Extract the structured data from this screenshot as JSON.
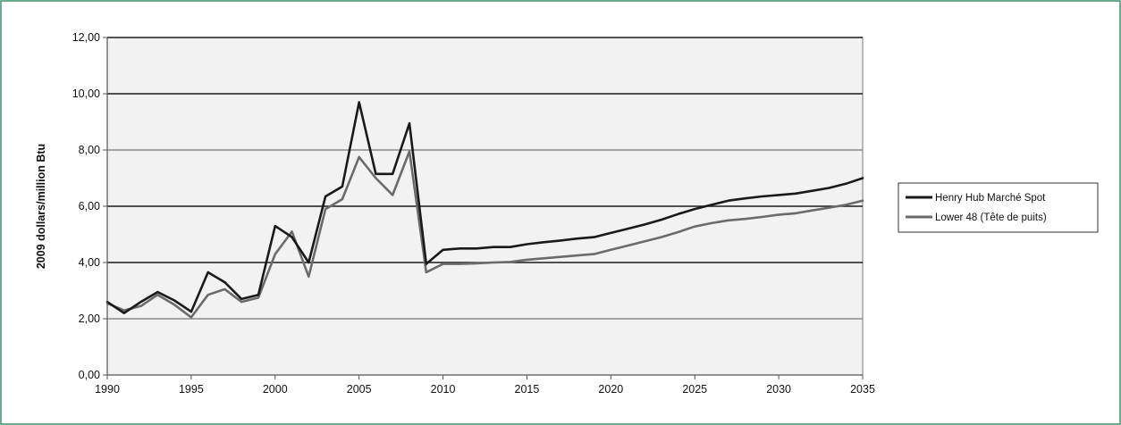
{
  "chart_data": {
    "type": "line",
    "title": "",
    "xlabel": "",
    "ylabel": "2009 dollars/million Btu",
    "xlim": [
      1990,
      2035
    ],
    "ylim": [
      0,
      12
    ],
    "x_ticks": [
      "1990",
      "1995",
      "2000",
      "2005",
      "2010",
      "2015",
      "2020",
      "2025",
      "2030",
      "2035"
    ],
    "y_ticks": [
      "0,00",
      "2,00",
      "4,00",
      "6,00",
      "8,00",
      "10,00",
      "12,00"
    ],
    "grid": true,
    "legend_position": "right",
    "x": [
      1990,
      1991,
      1992,
      1993,
      1994,
      1995,
      1996,
      1997,
      1998,
      1999,
      2000,
      2001,
      2002,
      2003,
      2004,
      2005,
      2006,
      2007,
      2008,
      2009,
      2010,
      2011,
      2012,
      2013,
      2014,
      2015,
      2016,
      2017,
      2018,
      2019,
      2020,
      2021,
      2022,
      2023,
      2024,
      2025,
      2026,
      2027,
      2028,
      2029,
      2030,
      2031,
      2032,
      2033,
      2034,
      2035
    ],
    "series": [
      {
        "name": "Henry Hub Marché Spot",
        "color": "#1a1a1a",
        "values": [
          2.6,
          2.2,
          2.6,
          2.95,
          2.65,
          2.25,
          3.65,
          3.3,
          2.7,
          2.85,
          5.3,
          4.9,
          4.0,
          6.35,
          6.7,
          9.7,
          7.15,
          7.15,
          8.95,
          3.95,
          4.45,
          4.5,
          4.5,
          4.55,
          4.55,
          4.65,
          4.72,
          4.78,
          4.85,
          4.9,
          5.05,
          5.2,
          5.35,
          5.52,
          5.72,
          5.9,
          6.05,
          6.2,
          6.28,
          6.35,
          6.4,
          6.45,
          6.55,
          6.65,
          6.8,
          7.0
        ]
      },
      {
        "name": "Lower 48 (Tête de puits)",
        "color": "#6b6b6b",
        "values": [
          2.55,
          2.3,
          2.45,
          2.85,
          2.5,
          2.05,
          2.85,
          3.05,
          2.6,
          2.75,
          4.3,
          5.1,
          3.5,
          5.9,
          6.25,
          7.75,
          7.0,
          6.4,
          7.95,
          3.65,
          3.95,
          3.95,
          3.97,
          4.0,
          4.02,
          4.1,
          4.15,
          4.2,
          4.25,
          4.3,
          4.45,
          4.6,
          4.75,
          4.9,
          5.08,
          5.28,
          5.4,
          5.5,
          5.55,
          5.62,
          5.7,
          5.75,
          5.85,
          5.95,
          6.05,
          6.2
        ]
      }
    ]
  }
}
